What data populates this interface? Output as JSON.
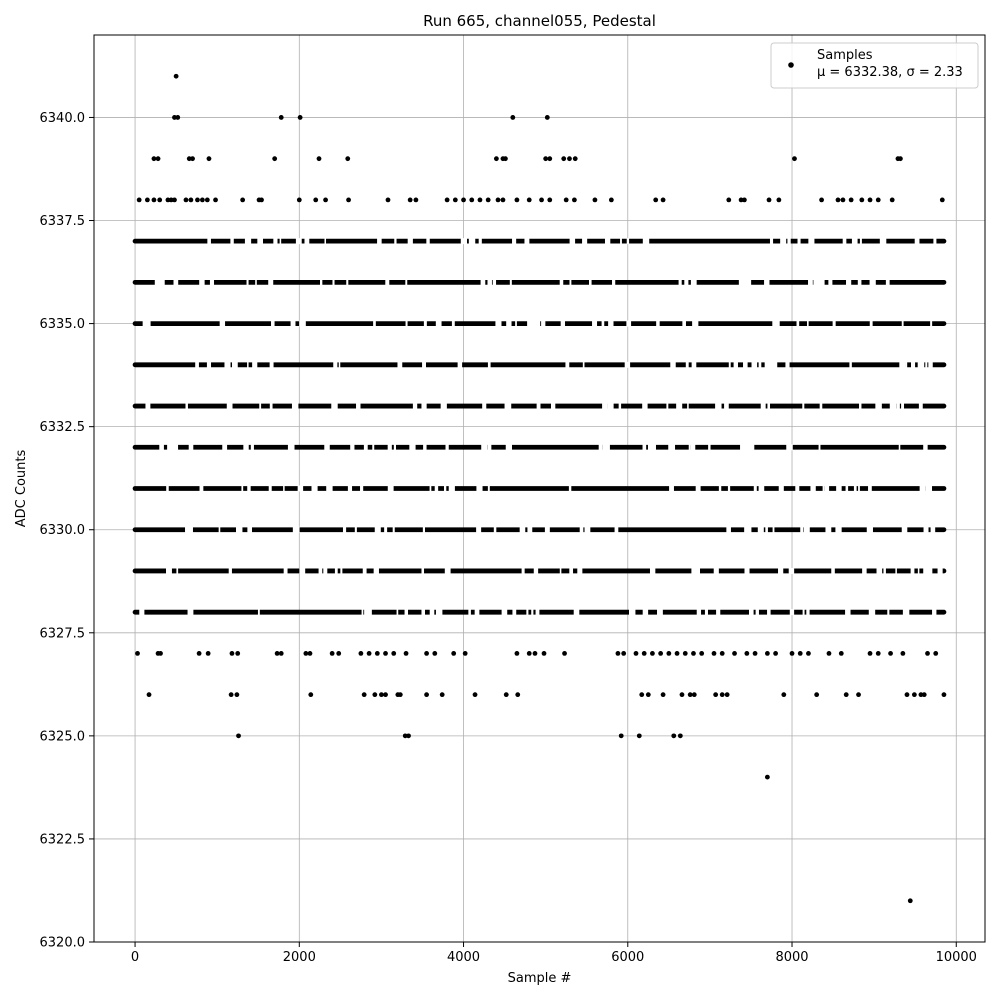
{
  "chart_data": {
    "type": "scatter",
    "title": "Run 665, channel055, Pedestal",
    "xlabel": "Sample #",
    "ylabel": "ADC Counts",
    "xlim": [
      -500,
      10350
    ],
    "ylim": [
      6320.0,
      6342.0
    ],
    "xticks": [
      0,
      2000,
      4000,
      6000,
      8000,
      10000
    ],
    "xtick_labels": [
      "0",
      "2000",
      "4000",
      "6000",
      "8000",
      "10000"
    ],
    "yticks": [
      6320.0,
      6322.5,
      6325.0,
      6327.5,
      6330.0,
      6332.5,
      6335.0,
      6337.5,
      6340.0
    ],
    "ytick_labels": [
      "6320.0",
      "6322.5",
      "6325.0",
      "6327.5",
      "6330.0",
      "6332.5",
      "6335.0",
      "6337.5",
      "6340.0"
    ],
    "grid": true,
    "legend_position": "top-right",
    "marker_color": "#000000",
    "series": [
      {
        "name": "Samples",
        "legend_stats": "μ = 6332.38, σ = 2.33",
        "x_range": [
          0,
          9850
        ],
        "bands": [
          {
            "y": 6329,
            "x": [
              0,
              9850
            ]
          },
          {
            "y": 6330,
            "x": [
              0,
              9850
            ]
          },
          {
            "y": 6331,
            "x": [
              0,
              9850
            ]
          },
          {
            "y": 6332,
            "x": [
              0,
              9850
            ]
          },
          {
            "y": 6333,
            "x": [
              0,
              9850
            ]
          },
          {
            "y": 6334,
            "x": [
              0,
              9850
            ]
          },
          {
            "y": 6335,
            "x": [
              0,
              9850
            ]
          },
          {
            "y": 6336,
            "x": [
              0,
              9850
            ]
          },
          {
            "y": 6328,
            "x": [
              0,
              9850
            ]
          },
          {
            "y": 6337,
            "x": [
              0,
              9850
            ]
          }
        ],
        "points": [
          {
            "x": 500,
            "y": 6341
          },
          {
            "x": 480,
            "y": 6340
          },
          {
            "x": 520,
            "y": 6340
          },
          {
            "x": 1780,
            "y": 6340
          },
          {
            "x": 2010,
            "y": 6340
          },
          {
            "x": 4600,
            "y": 6340
          },
          {
            "x": 5020,
            "y": 6340
          },
          {
            "x": 230,
            "y": 6339
          },
          {
            "x": 280,
            "y": 6339
          },
          {
            "x": 660,
            "y": 6339
          },
          {
            "x": 700,
            "y": 6339
          },
          {
            "x": 900,
            "y": 6339
          },
          {
            "x": 1700,
            "y": 6339
          },
          {
            "x": 2240,
            "y": 6339
          },
          {
            "x": 2590,
            "y": 6339
          },
          {
            "x": 4400,
            "y": 6339
          },
          {
            "x": 4480,
            "y": 6339
          },
          {
            "x": 4510,
            "y": 6339
          },
          {
            "x": 5000,
            "y": 6339
          },
          {
            "x": 5050,
            "y": 6339
          },
          {
            "x": 5220,
            "y": 6339
          },
          {
            "x": 5290,
            "y": 6339
          },
          {
            "x": 5360,
            "y": 6339
          },
          {
            "x": 8030,
            "y": 6339
          },
          {
            "x": 9290,
            "y": 6339
          },
          {
            "x": 9320,
            "y": 6339
          },
          {
            "x": 50,
            "y": 6338
          },
          {
            "x": 150,
            "y": 6338
          },
          {
            "x": 230,
            "y": 6338
          },
          {
            "x": 300,
            "y": 6338
          },
          {
            "x": 400,
            "y": 6338
          },
          {
            "x": 440,
            "y": 6338
          },
          {
            "x": 480,
            "y": 6338
          },
          {
            "x": 620,
            "y": 6338
          },
          {
            "x": 680,
            "y": 6338
          },
          {
            "x": 760,
            "y": 6338
          },
          {
            "x": 820,
            "y": 6338
          },
          {
            "x": 880,
            "y": 6338
          },
          {
            "x": 980,
            "y": 6338
          },
          {
            "x": 1310,
            "y": 6338
          },
          {
            "x": 1510,
            "y": 6338
          },
          {
            "x": 1540,
            "y": 6338
          },
          {
            "x": 2000,
            "y": 6338
          },
          {
            "x": 2200,
            "y": 6338
          },
          {
            "x": 2320,
            "y": 6338
          },
          {
            "x": 2600,
            "y": 6338
          },
          {
            "x": 3080,
            "y": 6338
          },
          {
            "x": 3350,
            "y": 6338
          },
          {
            "x": 3420,
            "y": 6338
          },
          {
            "x": 3800,
            "y": 6338
          },
          {
            "x": 3900,
            "y": 6338
          },
          {
            "x": 4000,
            "y": 6338
          },
          {
            "x": 4100,
            "y": 6338
          },
          {
            "x": 4200,
            "y": 6338
          },
          {
            "x": 4300,
            "y": 6338
          },
          {
            "x": 4420,
            "y": 6338
          },
          {
            "x": 4480,
            "y": 6338
          },
          {
            "x": 4650,
            "y": 6338
          },
          {
            "x": 4800,
            "y": 6338
          },
          {
            "x": 4950,
            "y": 6338
          },
          {
            "x": 5050,
            "y": 6338
          },
          {
            "x": 5250,
            "y": 6338
          },
          {
            "x": 5350,
            "y": 6338
          },
          {
            "x": 5600,
            "y": 6338
          },
          {
            "x": 5800,
            "y": 6338
          },
          {
            "x": 6340,
            "y": 6338
          },
          {
            "x": 6430,
            "y": 6338
          },
          {
            "x": 7230,
            "y": 6338
          },
          {
            "x": 7380,
            "y": 6338
          },
          {
            "x": 7420,
            "y": 6338
          },
          {
            "x": 7720,
            "y": 6338
          },
          {
            "x": 7840,
            "y": 6338
          },
          {
            "x": 8360,
            "y": 6338
          },
          {
            "x": 8560,
            "y": 6338
          },
          {
            "x": 8620,
            "y": 6338
          },
          {
            "x": 8720,
            "y": 6338
          },
          {
            "x": 8850,
            "y": 6338
          },
          {
            "x": 8950,
            "y": 6338
          },
          {
            "x": 9050,
            "y": 6338
          },
          {
            "x": 9220,
            "y": 6338
          },
          {
            "x": 9830,
            "y": 6338
          },
          {
            "x": 30,
            "y": 6327
          },
          {
            "x": 280,
            "y": 6327
          },
          {
            "x": 310,
            "y": 6327
          },
          {
            "x": 780,
            "y": 6327
          },
          {
            "x": 890,
            "y": 6327
          },
          {
            "x": 1180,
            "y": 6327
          },
          {
            "x": 1250,
            "y": 6327
          },
          {
            "x": 1730,
            "y": 6327
          },
          {
            "x": 1780,
            "y": 6327
          },
          {
            "x": 2080,
            "y": 6327
          },
          {
            "x": 2130,
            "y": 6327
          },
          {
            "x": 2400,
            "y": 6327
          },
          {
            "x": 2480,
            "y": 6327
          },
          {
            "x": 2750,
            "y": 6327
          },
          {
            "x": 2850,
            "y": 6327
          },
          {
            "x": 2950,
            "y": 6327
          },
          {
            "x": 3050,
            "y": 6327
          },
          {
            "x": 3150,
            "y": 6327
          },
          {
            "x": 3300,
            "y": 6327
          },
          {
            "x": 3550,
            "y": 6327
          },
          {
            "x": 3650,
            "y": 6327
          },
          {
            "x": 3880,
            "y": 6327
          },
          {
            "x": 4020,
            "y": 6327
          },
          {
            "x": 4650,
            "y": 6327
          },
          {
            "x": 4800,
            "y": 6327
          },
          {
            "x": 4870,
            "y": 6327
          },
          {
            "x": 4980,
            "y": 6327
          },
          {
            "x": 5230,
            "y": 6327
          },
          {
            "x": 5880,
            "y": 6327
          },
          {
            "x": 5950,
            "y": 6327
          },
          {
            "x": 6100,
            "y": 6327
          },
          {
            "x": 6200,
            "y": 6327
          },
          {
            "x": 6300,
            "y": 6327
          },
          {
            "x": 6400,
            "y": 6327
          },
          {
            "x": 6500,
            "y": 6327
          },
          {
            "x": 6600,
            "y": 6327
          },
          {
            "x": 6700,
            "y": 6327
          },
          {
            "x": 6800,
            "y": 6327
          },
          {
            "x": 6900,
            "y": 6327
          },
          {
            "x": 7050,
            "y": 6327
          },
          {
            "x": 7150,
            "y": 6327
          },
          {
            "x": 7300,
            "y": 6327
          },
          {
            "x": 7450,
            "y": 6327
          },
          {
            "x": 7550,
            "y": 6327
          },
          {
            "x": 7700,
            "y": 6327
          },
          {
            "x": 7800,
            "y": 6327
          },
          {
            "x": 8000,
            "y": 6327
          },
          {
            "x": 8100,
            "y": 6327
          },
          {
            "x": 8200,
            "y": 6327
          },
          {
            "x": 8450,
            "y": 6327
          },
          {
            "x": 8600,
            "y": 6327
          },
          {
            "x": 8950,
            "y": 6327
          },
          {
            "x": 9050,
            "y": 6327
          },
          {
            "x": 9200,
            "y": 6327
          },
          {
            "x": 9350,
            "y": 6327
          },
          {
            "x": 9650,
            "y": 6327
          },
          {
            "x": 9750,
            "y": 6327
          },
          {
            "x": 170,
            "y": 6326
          },
          {
            "x": 1170,
            "y": 6326
          },
          {
            "x": 1240,
            "y": 6326
          },
          {
            "x": 2140,
            "y": 6326
          },
          {
            "x": 2790,
            "y": 6326
          },
          {
            "x": 2920,
            "y": 6326
          },
          {
            "x": 3000,
            "y": 6326
          },
          {
            "x": 3050,
            "y": 6326
          },
          {
            "x": 3200,
            "y": 6326
          },
          {
            "x": 3230,
            "y": 6326
          },
          {
            "x": 3550,
            "y": 6326
          },
          {
            "x": 3740,
            "y": 6326
          },
          {
            "x": 4140,
            "y": 6326
          },
          {
            "x": 4520,
            "y": 6326
          },
          {
            "x": 4660,
            "y": 6326
          },
          {
            "x": 6170,
            "y": 6326
          },
          {
            "x": 6250,
            "y": 6326
          },
          {
            "x": 6430,
            "y": 6326
          },
          {
            "x": 6660,
            "y": 6326
          },
          {
            "x": 6760,
            "y": 6326
          },
          {
            "x": 6810,
            "y": 6326
          },
          {
            "x": 7070,
            "y": 6326
          },
          {
            "x": 7150,
            "y": 6326
          },
          {
            "x": 7210,
            "y": 6326
          },
          {
            "x": 7900,
            "y": 6326
          },
          {
            "x": 8300,
            "y": 6326
          },
          {
            "x": 8660,
            "y": 6326
          },
          {
            "x": 8810,
            "y": 6326
          },
          {
            "x": 9400,
            "y": 6326
          },
          {
            "x": 9490,
            "y": 6326
          },
          {
            "x": 9570,
            "y": 6326
          },
          {
            "x": 9610,
            "y": 6326
          },
          {
            "x": 9850,
            "y": 6326
          },
          {
            "x": 1260,
            "y": 6325
          },
          {
            "x": 3290,
            "y": 6325
          },
          {
            "x": 3330,
            "y": 6325
          },
          {
            "x": 5920,
            "y": 6325
          },
          {
            "x": 6140,
            "y": 6325
          },
          {
            "x": 6560,
            "y": 6325
          },
          {
            "x": 6640,
            "y": 6325
          },
          {
            "x": 7700,
            "y": 6324
          },
          {
            "x": 9440,
            "y": 6321
          }
        ]
      }
    ]
  }
}
